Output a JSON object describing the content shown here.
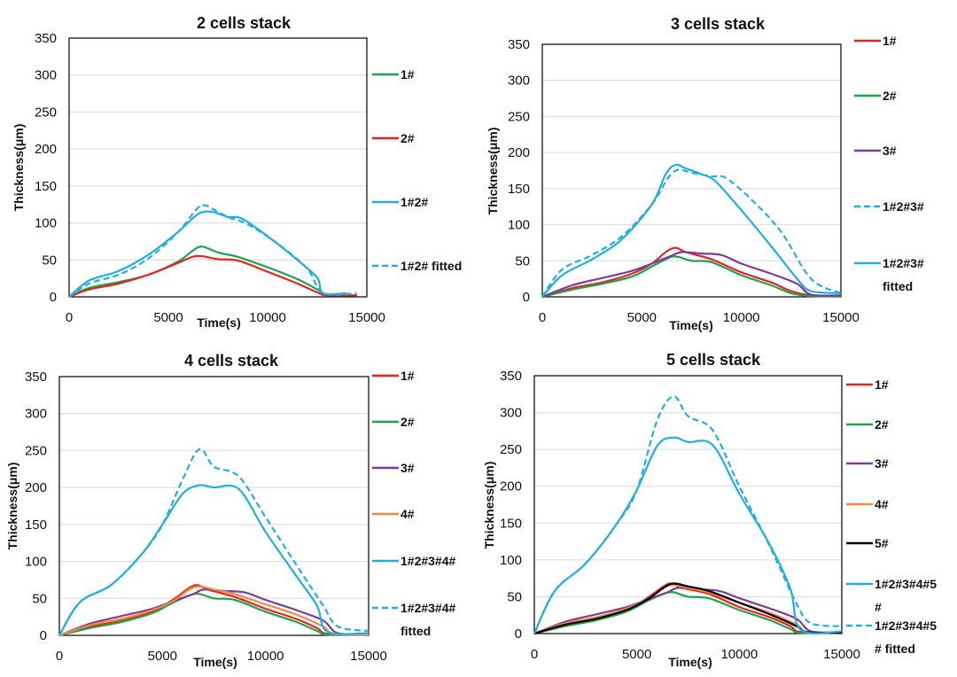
{
  "figure_colors": {
    "cell1": "#e8231f",
    "cell2": "#1fa34a",
    "cell3": "#7a3d9e",
    "cell4": "#f28a3c",
    "cell5": "#000000",
    "stack": "#22aee0",
    "grid": "#d9d9d9"
  },
  "chart_data": [
    {
      "type": "line",
      "title": "2 cells  stack",
      "xlabel": "Time(s)",
      "ylabel": "Thickness(μm)",
      "xlim": [
        0,
        15000
      ],
      "ylim": [
        0,
        350
      ],
      "xticks": [
        "0",
        "5000",
        "10000",
        "15000"
      ],
      "yticks": [
        "0",
        "50",
        "100",
        "150",
        "200",
        "250",
        "300",
        "350"
      ],
      "grid": "horizontal",
      "legend_position": "right",
      "series": [
        {
          "name": "1#",
          "color": "#1fa34a",
          "dash": false,
          "x": [
            0,
            1000,
            2500,
            4000,
            5500,
            6200,
            6700,
            7500,
            8500,
            10000,
            11500,
            12500,
            13000,
            14500
          ],
          "y": [
            0,
            12,
            20,
            30,
            48,
            62,
            68,
            60,
            54,
            40,
            24,
            10,
            3,
            2
          ]
        },
        {
          "name": "2#",
          "color": "#e8231f",
          "dash": false,
          "x": [
            0,
            1000,
            2500,
            4000,
            5500,
            6200,
            6700,
            7500,
            8500,
            10000,
            11500,
            12500,
            13000,
            14500
          ],
          "y": [
            0,
            10,
            18,
            30,
            46,
            54,
            55,
            51,
            49,
            34,
            18,
            6,
            2,
            2
          ]
        },
        {
          "name": "1#2#",
          "color": "#22aee0",
          "dash": false,
          "x": [
            0,
            1000,
            2500,
            4000,
            5500,
            6500,
            7200,
            8000,
            8700,
            10000,
            11500,
            12500,
            12800,
            14000
          ],
          "y": [
            0,
            22,
            35,
            57,
            88,
            112,
            115,
            108,
            106,
            82,
            50,
            26,
            5,
            5
          ]
        },
        {
          "name": "1#2# fitted",
          "color": "#22aee0",
          "dash": true,
          "x": [
            0,
            1000,
            2500,
            4000,
            5500,
            6400,
            6800,
            7300,
            8000,
            9000,
            10500,
            12000,
            12800,
            14500
          ],
          "y": [
            0,
            18,
            30,
            52,
            88,
            118,
            124,
            118,
            108,
            98,
            72,
            38,
            5,
            5
          ]
        }
      ]
    },
    {
      "type": "line",
      "title": "3 cells  stack",
      "xlabel": "Time(s)",
      "ylabel": "Thickness(μm)",
      "xlim": [
        0,
        15000
      ],
      "ylim": [
        0,
        350
      ],
      "xticks": [
        "0",
        "5000",
        "10000",
        "15000"
      ],
      "yticks": [
        "0",
        "50",
        "100",
        "150",
        "200",
        "250",
        "300",
        "350"
      ],
      "grid": "horizontal",
      "legend_position": "right",
      "series": [
        {
          "name": "1#",
          "color": "#e8231f",
          "dash": false,
          "x": [
            0,
            1500,
            3000,
            4500,
            5500,
            6200,
            6700,
            7200,
            8500,
            10000,
            11500,
            12500,
            13500,
            15000
          ],
          "y": [
            0,
            12,
            20,
            32,
            46,
            62,
            68,
            62,
            52,
            34,
            20,
            8,
            2,
            1
          ]
        },
        {
          "name": "2#",
          "color": "#1fa34a",
          "dash": false,
          "x": [
            0,
            1500,
            3000,
            4500,
            5500,
            6200,
            6700,
            7500,
            8500,
            10000,
            11500,
            12500,
            13500,
            15000
          ],
          "y": [
            0,
            10,
            18,
            28,
            42,
            52,
            56,
            50,
            48,
            30,
            16,
            5,
            1,
            1
          ]
        },
        {
          "name": "3#",
          "color": "#7a3d9e",
          "dash": false,
          "x": [
            0,
            1500,
            3000,
            4500,
            5500,
            6400,
            7000,
            8000,
            9000,
            10000,
            11500,
            12800,
            13500,
            15000
          ],
          "y": [
            0,
            16,
            26,
            36,
            46,
            56,
            62,
            60,
            58,
            46,
            32,
            18,
            3,
            2
          ]
        },
        {
          "name": "1#2#3#",
          "color": "#22aee0",
          "dash": true,
          "x": [
            0,
            1000,
            2500,
            4000,
            5500,
            6300,
            6800,
            7500,
            8500,
            9200,
            10500,
            12000,
            13500,
            15000
          ],
          "y": [
            0,
            38,
            58,
            84,
            128,
            164,
            176,
            172,
            167,
            165,
            135,
            90,
            25,
            5
          ]
        },
        {
          "name": "1#2#3#  fitted",
          "color": "#22aee0",
          "dash": false,
          "x": [
            0,
            1000,
            2500,
            4000,
            5500,
            6200,
            6700,
            7200,
            8000,
            8700,
            10000,
            11500,
            12800,
            13500,
            15000
          ],
          "y": [
            0,
            30,
            52,
            80,
            128,
            170,
            183,
            178,
            170,
            160,
            120,
            70,
            25,
            8,
            5
          ]
        }
      ]
    },
    {
      "type": "line",
      "title": "4 cells  stack",
      "xlabel": "Time(s)",
      "ylabel": "Thickness(μm)",
      "xlim": [
        0,
        15000
      ],
      "ylim": [
        0,
        350
      ],
      "xticks": [
        "0",
        "5000",
        "10000",
        "15000"
      ],
      "yticks": [
        "0",
        "50",
        "100",
        "150",
        "200",
        "250",
        "300",
        "350"
      ],
      "grid": "horizontal",
      "legend_position": "right",
      "series": [
        {
          "name": "1#",
          "color": "#e8231f",
          "dash": false,
          "x": [
            0,
            1500,
            3000,
            4500,
            5500,
            6300,
            6700,
            7200,
            8500,
            10000,
            11500,
            12500,
            13000,
            15000
          ],
          "y": [
            0,
            12,
            20,
            32,
            48,
            64,
            68,
            62,
            52,
            36,
            22,
            10,
            2,
            1
          ]
        },
        {
          "name": "2#",
          "color": "#1fa34a",
          "dash": false,
          "x": [
            0,
            1500,
            3000,
            4500,
            5500,
            6300,
            6800,
            7500,
            8500,
            10000,
            11500,
            12500,
            13000,
            15000
          ],
          "y": [
            0,
            10,
            18,
            30,
            44,
            54,
            56,
            50,
            48,
            32,
            18,
            6,
            1,
            1
          ]
        },
        {
          "name": "3#",
          "color": "#7a3d9e",
          "dash": false,
          "x": [
            0,
            1500,
            3000,
            4500,
            5500,
            6500,
            7000,
            8000,
            9000,
            10000,
            11500,
            12800,
            13500,
            15000
          ],
          "y": [
            0,
            16,
            26,
            36,
            46,
            56,
            62,
            60,
            58,
            48,
            34,
            20,
            3,
            2
          ]
        },
        {
          "name": "4#",
          "color": "#f28a3c",
          "dash": false,
          "x": [
            0,
            1500,
            3000,
            4500,
            5500,
            6300,
            6800,
            7500,
            8500,
            10000,
            11500,
            12800,
            13300,
            15000
          ],
          "y": [
            0,
            14,
            22,
            34,
            46,
            62,
            66,
            62,
            56,
            42,
            28,
            12,
            2,
            1
          ]
        },
        {
          "name": "1#2#3#4#",
          "color": "#22aee0",
          "dash": false,
          "x": [
            0,
            1000,
            2500,
            4000,
            5000,
            6000,
            6800,
            7500,
            8700,
            10000,
            11500,
            12500,
            13000,
            15000
          ],
          "y": [
            0,
            45,
            68,
            110,
            150,
            192,
            203,
            200,
            198,
            140,
            80,
            40,
            5,
            3
          ]
        },
        {
          "name": "1#2#3#4#  fitted",
          "color": "#22aee0",
          "dash": true,
          "x": [
            0,
            1000,
            2500,
            4000,
            5000,
            6000,
            6800,
            7500,
            8700,
            10000,
            11500,
            12800,
            13500,
            15000
          ],
          "y": [
            0,
            45,
            68,
            110,
            150,
            212,
            252,
            228,
            215,
            160,
            95,
            40,
            12,
            6
          ]
        }
      ]
    },
    {
      "type": "line",
      "title": "5 cells  stack",
      "xlabel": "Time(s)",
      "ylabel": "Thickness(μm)",
      "xlim": [
        0,
        15000
      ],
      "ylim": [
        0,
        350
      ],
      "xticks": [
        "0",
        "5000",
        "10000",
        "15000"
      ],
      "yticks": [
        "0",
        "50",
        "100",
        "150",
        "200",
        "250",
        "300",
        "350"
      ],
      "grid": "horizontal",
      "legend_position": "right",
      "series": [
        {
          "name": "1#",
          "color": "#e8231f",
          "dash": false,
          "x": [
            0,
            1500,
            3000,
            4500,
            5500,
            6300,
            6700,
            7200,
            8500,
            10000,
            11500,
            12500,
            13000,
            15000
          ],
          "y": [
            0,
            12,
            20,
            32,
            48,
            64,
            68,
            62,
            54,
            36,
            22,
            10,
            2,
            1
          ]
        },
        {
          "name": "2#",
          "color": "#1fa34a",
          "dash": false,
          "x": [
            0,
            1500,
            3000,
            4500,
            5500,
            6300,
            6800,
            7500,
            8500,
            10000,
            11500,
            12500,
            13000,
            15000
          ],
          "y": [
            0,
            10,
            18,
            30,
            44,
            54,
            56,
            50,
            48,
            32,
            18,
            6,
            1,
            1
          ]
        },
        {
          "name": "3#",
          "color": "#7a3d9e",
          "dash": false,
          "x": [
            0,
            1500,
            3000,
            4500,
            5500,
            6500,
            7000,
            8000,
            9000,
            10000,
            11500,
            12800,
            13500,
            15000
          ],
          "y": [
            0,
            16,
            26,
            36,
            46,
            56,
            62,
            60,
            58,
            48,
            34,
            20,
            3,
            2
          ]
        },
        {
          "name": "4#",
          "color": "#f28a3c",
          "dash": false,
          "x": [
            0,
            1500,
            3000,
            4500,
            5500,
            6300,
            6800,
            7500,
            8500,
            10000,
            11500,
            12800,
            13300,
            15000
          ],
          "y": [
            0,
            14,
            22,
            34,
            46,
            62,
            66,
            62,
            56,
            42,
            28,
            12,
            2,
            1
          ]
        },
        {
          "name": "5#",
          "color": "#000000",
          "dash": false,
          "x": [
            0,
            1500,
            3000,
            4500,
            5500,
            6300,
            6800,
            7500,
            8500,
            10000,
            11500,
            12800,
            13300,
            15000
          ],
          "y": [
            0,
            12,
            20,
            32,
            46,
            62,
            68,
            64,
            58,
            42,
            26,
            10,
            2,
            1
          ]
        },
        {
          "name": "1#2#3#4#5\n#",
          "color": "#22aee0",
          "dash": false,
          "x": [
            0,
            1000,
            2500,
            4000,
            5000,
            6000,
            6800,
            7500,
            8700,
            10000,
            11500,
            12500,
            13000,
            15000
          ],
          "y": [
            0,
            58,
            95,
            148,
            195,
            255,
            266,
            260,
            256,
            190,
            120,
            60,
            5,
            3
          ]
        },
        {
          "name": "1#2#3#4#5\n# fitted",
          "color": "#22aee0",
          "dash": true,
          "x": [
            0,
            1000,
            2500,
            4000,
            5000,
            6000,
            6800,
            7500,
            8700,
            10000,
            11500,
            12800,
            13500,
            15000
          ],
          "y": [
            0,
            58,
            95,
            148,
            195,
            290,
            322,
            295,
            276,
            200,
            118,
            40,
            14,
            10
          ]
        }
      ]
    }
  ]
}
